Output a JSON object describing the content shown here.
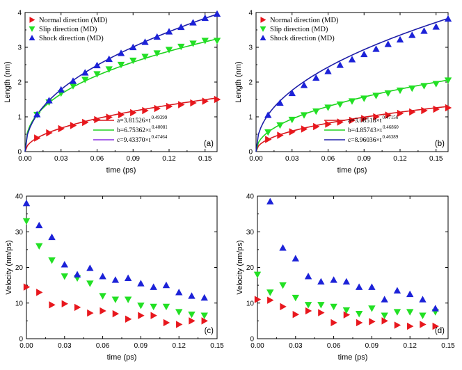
{
  "colors": {
    "normal": "#e8171d",
    "slip": "#22e024",
    "shock": "#1c22d8",
    "normal_fit": "#d8191e",
    "slip_fit": "#1ed21e",
    "shock_fit": "#1e1ea8",
    "c_fit_swatch": "#8a2be2"
  },
  "chart_data": [
    {
      "id": "a",
      "type": "scatter",
      "tag": "(a)",
      "xlabel": "time (ps)",
      "ylabel": "Length (nm)",
      "xlim": [
        0,
        0.16
      ],
      "ylim": [
        0,
        4
      ],
      "xticks": [
        "0.00",
        "0.03",
        "0.06",
        "0.09",
        "0.12",
        "0.15"
      ],
      "yticks": [
        "0",
        "1",
        "2",
        "3",
        "4"
      ],
      "legend": [
        "Normal direction (MD)",
        "Slip direction (MD)",
        "Shock direction (MD)"
      ],
      "fits": [
        {
          "text": "a=3.81526×t",
          "exp": "0.49399",
          "coef": 3.81526,
          "power": 0.49399
        },
        {
          "text": "b=6.75362×t",
          "exp": "0.40081",
          "coef": 6.75362,
          "power": 0.40081
        },
        {
          "text": "c=9.43370×t",
          "exp": "0.47464",
          "coef": 9.4337,
          "power": 0.47464
        }
      ],
      "series": [
        {
          "name": "Normal direction (MD)",
          "marker": "triangle-right",
          "x": [
            0.01,
            0.02,
            0.03,
            0.04,
            0.05,
            0.06,
            0.07,
            0.08,
            0.09,
            0.1,
            0.11,
            0.12,
            0.13,
            0.14,
            0.15,
            0.16
          ],
          "y": [
            0.39,
            0.54,
            0.66,
            0.75,
            0.84,
            0.92,
            0.99,
            1.06,
            1.12,
            1.18,
            1.24,
            1.3,
            1.35,
            1.4,
            1.45,
            1.5
          ]
        },
        {
          "name": "Slip direction (MD)",
          "marker": "triangle-down",
          "x": [
            0.01,
            0.02,
            0.03,
            0.04,
            0.05,
            0.06,
            0.07,
            0.08,
            0.09,
            0.1,
            0.11,
            0.12,
            0.13,
            0.14,
            0.15,
            0.16
          ],
          "y": [
            1.06,
            1.42,
            1.68,
            1.89,
            2.07,
            2.23,
            2.37,
            2.5,
            2.62,
            2.73,
            2.83,
            2.93,
            3.02,
            3.11,
            3.19,
            3.19
          ]
        },
        {
          "name": "Shock direction (MD)",
          "marker": "triangle-up",
          "x": [
            0.01,
            0.02,
            0.03,
            0.04,
            0.05,
            0.06,
            0.07,
            0.08,
            0.09,
            0.1,
            0.11,
            0.12,
            0.13,
            0.14,
            0.15,
            0.16
          ],
          "y": [
            1.07,
            1.47,
            1.78,
            2.03,
            2.27,
            2.48,
            2.66,
            2.83,
            3.0,
            3.15,
            3.3,
            3.45,
            3.58,
            3.71,
            3.84,
            3.96
          ]
        }
      ]
    },
    {
      "id": "b",
      "type": "scatter",
      "tag": "(b)",
      "xlabel": "time (ps)",
      "ylabel": "Length (nm)",
      "xlim": [
        0,
        0.16
      ],
      "ylim": [
        0,
        4
      ],
      "xticks": [
        "0.00",
        "0.03",
        "0.06",
        "0.09",
        "0.12",
        "0.15"
      ],
      "yticks": [
        "0",
        "1",
        "2",
        "3",
        "4"
      ],
      "legend": [
        "Normal direction (MD)",
        "Slip direction (MD)",
        "Shock direction (MD)"
      ],
      "fits": [
        {
          "text": "a=3.08518×t",
          "exp": "0.47156",
          "coef": 3.08518,
          "power": 0.47156
        },
        {
          "text": "b=4.85743×t",
          "exp": "0.46860",
          "coef": 4.85743,
          "power": 0.4686
        },
        {
          "text": "c=8.96036×t",
          "exp": "0.46389",
          "coef": 8.96036,
          "power": 0.46389
        }
      ],
      "series": [
        {
          "name": "Normal direction (MD)",
          "marker": "triangle-right",
          "x": [
            0.01,
            0.02,
            0.03,
            0.04,
            0.05,
            0.06,
            0.07,
            0.08,
            0.09,
            0.1,
            0.11,
            0.12,
            0.13,
            0.14,
            0.15,
            0.16
          ],
          "y": [
            0.35,
            0.47,
            0.57,
            0.65,
            0.72,
            0.79,
            0.85,
            0.9,
            0.95,
            1.0,
            1.05,
            1.1,
            1.14,
            1.18,
            1.22,
            1.26
          ]
        },
        {
          "name": "Slip direction (MD)",
          "marker": "triangle-down",
          "x": [
            0.01,
            0.02,
            0.03,
            0.04,
            0.05,
            0.06,
            0.07,
            0.08,
            0.09,
            0.1,
            0.11,
            0.12,
            0.13,
            0.14,
            0.15,
            0.16
          ],
          "y": [
            0.56,
            0.76,
            0.92,
            1.05,
            1.16,
            1.27,
            1.36,
            1.45,
            1.53,
            1.61,
            1.68,
            1.76,
            1.82,
            1.89,
            1.95,
            2.05
          ]
        },
        {
          "name": "Shock direction (MD)",
          "marker": "triangle-up",
          "x": [
            0.01,
            0.02,
            0.03,
            0.04,
            0.05,
            0.06,
            0.07,
            0.08,
            0.09,
            0.1,
            0.11,
            0.12,
            0.13,
            0.14,
            0.15,
            0.16
          ],
          "y": [
            1.05,
            1.4,
            1.68,
            1.91,
            2.12,
            2.31,
            2.49,
            2.65,
            2.8,
            2.95,
            3.09,
            3.22,
            3.35,
            3.47,
            3.59,
            3.82
          ]
        }
      ]
    },
    {
      "id": "c",
      "type": "scatter",
      "tag": "(c)",
      "xlabel": "time (ps)",
      "ylabel": "Velocity (nm/ps)",
      "xlim": [
        0,
        0.15
      ],
      "ylim": [
        0,
        40
      ],
      "xticks": [
        "0.00",
        "0.03",
        "0.06",
        "0.09",
        "0.12",
        "0.15"
      ],
      "yticks": [
        "0",
        "10",
        "20",
        "30",
        "40"
      ],
      "series": [
        {
          "name": "Normal direction (MD)",
          "marker": "triangle-right",
          "x": [
            0.0,
            0.01,
            0.02,
            0.03,
            0.04,
            0.05,
            0.06,
            0.07,
            0.08,
            0.09,
            0.1,
            0.11,
            0.12,
            0.13,
            0.14
          ],
          "y": [
            14.5,
            13.0,
            9.5,
            9.8,
            8.8,
            7.2,
            7.8,
            7.0,
            5.5,
            6.5,
            6.5,
            4.5,
            4.0,
            5.0,
            5.0
          ]
        },
        {
          "name": "Slip direction (MD)",
          "marker": "triangle-down",
          "x": [
            0.0,
            0.01,
            0.02,
            0.03,
            0.04,
            0.05,
            0.06,
            0.07,
            0.08,
            0.09,
            0.1,
            0.11,
            0.12,
            0.13,
            0.14
          ],
          "y": [
            33.0,
            26.0,
            22.0,
            17.5,
            17.0,
            15.5,
            12.0,
            11.0,
            11.0,
            9.3,
            9.0,
            9.0,
            7.5,
            6.8,
            6.5
          ]
        },
        {
          "name": "Shock direction (MD)",
          "marker": "triangle-up",
          "x": [
            0.0,
            0.01,
            0.02,
            0.03,
            0.04,
            0.05,
            0.06,
            0.07,
            0.08,
            0.09,
            0.1,
            0.11,
            0.12,
            0.13,
            0.14
          ],
          "y": [
            38.0,
            31.8,
            28.5,
            20.8,
            18.0,
            19.8,
            17.5,
            16.5,
            17.0,
            15.5,
            14.5,
            15.0,
            13.0,
            12.0,
            11.5
          ]
        }
      ]
    },
    {
      "id": "d",
      "type": "scatter",
      "tag": "(d)",
      "xlabel": "time (ps)",
      "ylabel": "Velocity (nm/ps)",
      "xlim": [
        0,
        0.15
      ],
      "ylim": [
        0,
        40
      ],
      "xticks": [
        "0.00",
        "0.03",
        "0.06",
        "0.09",
        "0.12",
        "0.15"
      ],
      "yticks": [
        "0",
        "10",
        "20",
        "30",
        "40"
      ],
      "series": [
        {
          "name": "Normal direction (MD)",
          "marker": "triangle-right",
          "x": [
            0.0,
            0.01,
            0.02,
            0.03,
            0.04,
            0.05,
            0.06,
            0.07,
            0.08,
            0.09,
            0.1,
            0.11,
            0.12,
            0.13,
            0.14
          ],
          "y": [
            11.0,
            10.8,
            9.0,
            6.8,
            7.8,
            7.3,
            4.5,
            6.7,
            4.5,
            4.8,
            5.0,
            3.8,
            3.5,
            4.0,
            3.5
          ]
        },
        {
          "name": "Slip direction (MD)",
          "marker": "triangle-down",
          "x": [
            0.0,
            0.01,
            0.02,
            0.03,
            0.04,
            0.05,
            0.06,
            0.07,
            0.08,
            0.09,
            0.1,
            0.11,
            0.12,
            0.13,
            0.14
          ],
          "y": [
            18.0,
            13.0,
            15.0,
            11.5,
            9.5,
            9.5,
            9.0,
            8.0,
            7.0,
            8.5,
            6.5,
            7.5,
            7.5,
            6.5,
            7.5
          ]
        },
        {
          "name": "Shock direction (MD)",
          "marker": "triangle-up",
          "x": [
            0.01,
            0.02,
            0.03,
            0.04,
            0.05,
            0.06,
            0.07,
            0.08,
            0.09,
            0.1,
            0.11,
            0.12,
            0.13,
            0.14
          ],
          "y": [
            38.5,
            25.5,
            22.5,
            17.5,
            16.0,
            16.5,
            16.0,
            14.5,
            14.5,
            11.0,
            13.5,
            12.5,
            11.0,
            8.5
          ]
        }
      ]
    }
  ]
}
